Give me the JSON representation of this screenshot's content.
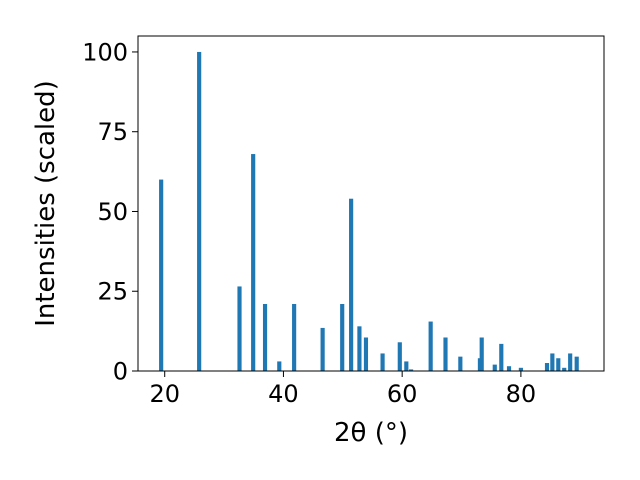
{
  "chart_data": {
    "type": "bar",
    "title": "",
    "xlabel": "2θ (°)",
    "ylabel": "Intensities (scaled)",
    "xlim": [
      15.5,
      94.0
    ],
    "ylim": [
      0,
      105
    ],
    "grid": false,
    "bar_color": "#1f77b4",
    "bar_width": 0.7,
    "xticks": [
      20,
      40,
      60,
      80
    ],
    "yticks": [
      0,
      25,
      50,
      75,
      100
    ],
    "peaks": [
      {
        "x": 19.4,
        "y": 60
      },
      {
        "x": 25.8,
        "y": 100
      },
      {
        "x": 32.6,
        "y": 26.5
      },
      {
        "x": 34.9,
        "y": 68
      },
      {
        "x": 36.9,
        "y": 21
      },
      {
        "x": 39.3,
        "y": 3
      },
      {
        "x": 41.8,
        "y": 21
      },
      {
        "x": 46.6,
        "y": 13.5
      },
      {
        "x": 49.9,
        "y": 21
      },
      {
        "x": 51.4,
        "y": 54
      },
      {
        "x": 52.8,
        "y": 14
      },
      {
        "x": 53.9,
        "y": 10.5
      },
      {
        "x": 56.7,
        "y": 5.5
      },
      {
        "x": 59.6,
        "y": 9
      },
      {
        "x": 60.7,
        "y": 3
      },
      {
        "x": 61.5,
        "y": 0.5
      },
      {
        "x": 64.8,
        "y": 15.5
      },
      {
        "x": 67.3,
        "y": 10.5
      },
      {
        "x": 69.8,
        "y": 4.5
      },
      {
        "x": 73.1,
        "y": 4
      },
      {
        "x": 73.4,
        "y": 10.5
      },
      {
        "x": 75.6,
        "y": 2
      },
      {
        "x": 76.7,
        "y": 8.5
      },
      {
        "x": 78.0,
        "y": 1.5
      },
      {
        "x": 80.0,
        "y": 1
      },
      {
        "x": 84.4,
        "y": 2.5
      },
      {
        "x": 85.3,
        "y": 5.5
      },
      {
        "x": 86.3,
        "y": 4
      },
      {
        "x": 87.3,
        "y": 1
      },
      {
        "x": 88.3,
        "y": 5.5
      },
      {
        "x": 89.4,
        "y": 4.5
      }
    ]
  }
}
